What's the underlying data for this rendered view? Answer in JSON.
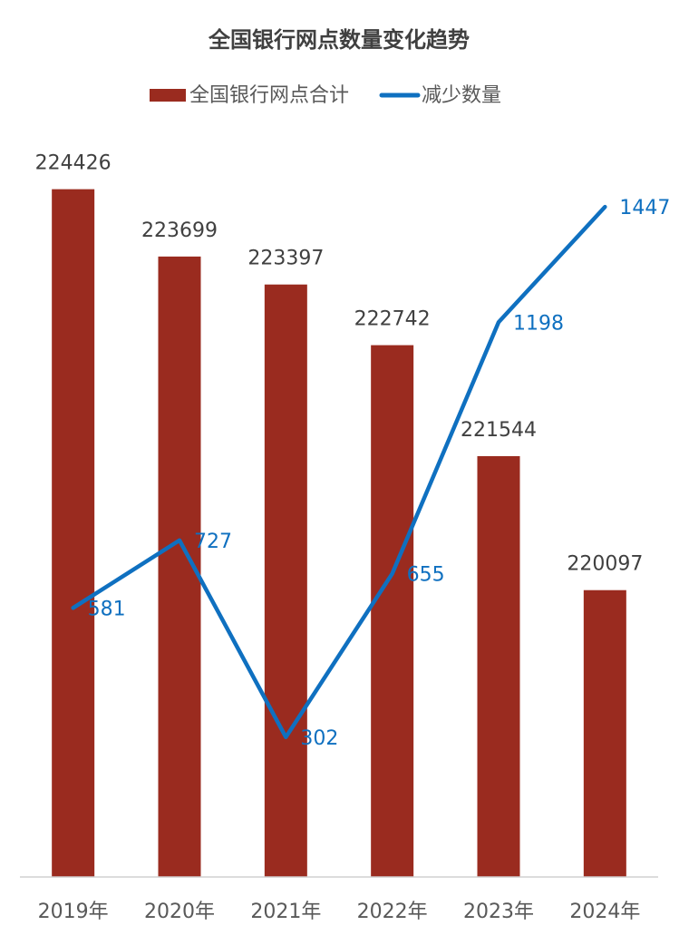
{
  "chart_data": {
    "type": "bar_line",
    "title": "全国银行网点数量变化趋势",
    "categories": [
      "2019年",
      "2020年",
      "2021年",
      "2022年",
      "2023年",
      "2024年"
    ],
    "series": [
      {
        "name": "全国银行网点合计",
        "color": "#9a2b1f",
        "type": "bar",
        "values": [
          224426,
          223699,
          223397,
          222742,
          221544,
          220097
        ]
      },
      {
        "name": "减少数量",
        "color": "#0f70c0",
        "type": "line",
        "axis": "y2",
        "values": [
          581,
          727,
          302,
          655,
          1198,
          1447
        ]
      }
    ],
    "ylim": [
      217000,
      225000
    ],
    "y2lim": [
      0,
      1600
    ],
    "grid": false,
    "legend": "top"
  }
}
